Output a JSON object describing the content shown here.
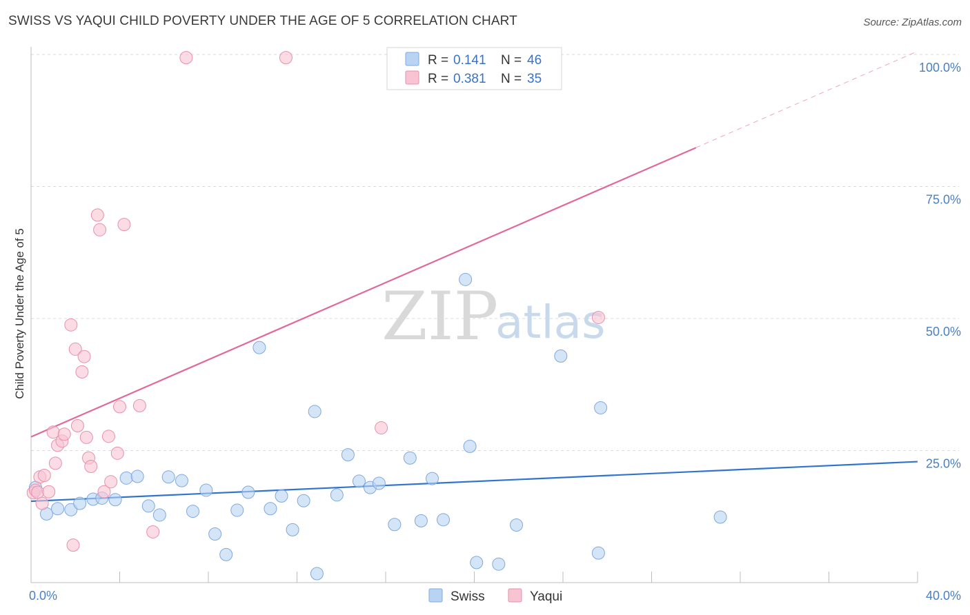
{
  "title": "SWISS VS YAQUI CHILD POVERTY UNDER THE AGE OF 5 CORRELATION CHART",
  "source": "Source: ZipAtlas.com",
  "watermark": {
    "zip": "ZIP",
    "atlas": "atlas"
  },
  "colors": {
    "swiss_fill": "#b9d3f3",
    "swiss_stroke": "#7fa8dc",
    "swiss_line": "#2f74cf",
    "yaqui_fill": "#f8c4d4",
    "yaqui_stroke": "#e98fab",
    "yaqui_line": "#e2679a",
    "grid": "#d8d8d8",
    "tick_label": "#4a7fc1"
  },
  "legend": {
    "rows": [
      {
        "r_label": "R =",
        "r_value": "0.141",
        "n_label": "N =",
        "n_value": "46"
      },
      {
        "r_label": "R =",
        "r_value": "0.381",
        "n_label": "N =",
        "n_value": "35"
      }
    ]
  },
  "chart_data": {
    "type": "scatter",
    "title": "SWISS VS YAQUI CHILD POVERTY UNDER THE AGE OF 5 CORRELATION CHART",
    "xlabel": "",
    "ylabel": "Child Poverty Under the Age of 5",
    "xlim": [
      0,
      40
    ],
    "ylim": [
      0,
      100
    ],
    "x_tick_labels": [
      {
        "value": 0,
        "label": "0.0%"
      },
      {
        "value": 40,
        "label": "40.0%"
      }
    ],
    "y_tick_labels": [
      {
        "value": 25,
        "label": "25.0%"
      },
      {
        "value": 50,
        "label": "50.0%"
      },
      {
        "value": 75,
        "label": "75.0%"
      },
      {
        "value": 100,
        "label": "100.0%"
      }
    ],
    "grid": true,
    "legend_position": "top-center",
    "series": [
      {
        "name": "Swiss",
        "r": 0.141,
        "n": 46,
        "trend": {
          "x": [
            0,
            40
          ],
          "y": [
            15.4,
            22.9
          ],
          "dashed_from_x": null
        },
        "points": [
          [
            0.2,
            18.0
          ],
          [
            0.7,
            13.0
          ],
          [
            1.2,
            14.0
          ],
          [
            1.8,
            13.8
          ],
          [
            2.2,
            15.0
          ],
          [
            2.8,
            15.8
          ],
          [
            3.2,
            16.0
          ],
          [
            3.8,
            15.7
          ],
          [
            4.3,
            19.8
          ],
          [
            4.8,
            20.1
          ],
          [
            5.3,
            14.5
          ],
          [
            5.8,
            12.8
          ],
          [
            6.2,
            20.0
          ],
          [
            6.8,
            19.3
          ],
          [
            7.3,
            13.5
          ],
          [
            7.9,
            17.5
          ],
          [
            8.3,
            9.2
          ],
          [
            8.8,
            5.3
          ],
          [
            9.3,
            13.7
          ],
          [
            9.8,
            17.1
          ],
          [
            10.3,
            44.5
          ],
          [
            10.8,
            14.0
          ],
          [
            11.3,
            16.4
          ],
          [
            11.8,
            10.0
          ],
          [
            12.3,
            15.5
          ],
          [
            12.8,
            32.4
          ],
          [
            12.9,
            1.7
          ],
          [
            13.8,
            16.6
          ],
          [
            14.3,
            24.2
          ],
          [
            14.8,
            19.2
          ],
          [
            15.3,
            18.0
          ],
          [
            15.7,
            18.8
          ],
          [
            16.4,
            11.0
          ],
          [
            17.1,
            23.6
          ],
          [
            17.6,
            11.7
          ],
          [
            18.1,
            19.7
          ],
          [
            18.6,
            11.9
          ],
          [
            19.6,
            57.4
          ],
          [
            19.8,
            25.8
          ],
          [
            20.1,
            3.8
          ],
          [
            21.1,
            3.5
          ],
          [
            21.9,
            10.9
          ],
          [
            23.9,
            42.9
          ],
          [
            25.6,
            5.6
          ],
          [
            25.7,
            33.1
          ],
          [
            31.1,
            12.4
          ]
        ]
      },
      {
        "name": "Yaqui",
        "r": 0.381,
        "n": 35,
        "trend": {
          "x": [
            0,
            40
          ],
          "y": [
            27.6,
            100.6
          ],
          "dashed_from_x": 30.0
        },
        "points": [
          [
            0.1,
            17.0
          ],
          [
            0.2,
            17.5
          ],
          [
            0.3,
            17.1
          ],
          [
            0.4,
            20.0
          ],
          [
            0.5,
            15.0
          ],
          [
            0.6,
            20.3
          ],
          [
            0.8,
            17.2
          ],
          [
            1.0,
            28.5
          ],
          [
            1.1,
            22.6
          ],
          [
            1.2,
            26.0
          ],
          [
            1.4,
            26.8
          ],
          [
            1.5,
            28.1
          ],
          [
            1.8,
            48.8
          ],
          [
            1.9,
            7.1
          ],
          [
            2.0,
            44.2
          ],
          [
            2.1,
            29.7
          ],
          [
            2.3,
            39.9
          ],
          [
            2.4,
            42.8
          ],
          [
            2.5,
            27.5
          ],
          [
            2.6,
            23.6
          ],
          [
            2.7,
            22.0
          ],
          [
            3.0,
            69.6
          ],
          [
            3.1,
            66.8
          ],
          [
            3.3,
            17.2
          ],
          [
            3.5,
            27.7
          ],
          [
            3.6,
            19.1
          ],
          [
            3.9,
            24.5
          ],
          [
            4.0,
            33.3
          ],
          [
            4.2,
            67.8
          ],
          [
            4.9,
            33.5
          ],
          [
            5.5,
            9.6
          ],
          [
            7.0,
            99.4
          ],
          [
            11.5,
            99.4
          ],
          [
            15.8,
            29.3
          ],
          [
            25.6,
            50.2
          ]
        ]
      }
    ]
  }
}
